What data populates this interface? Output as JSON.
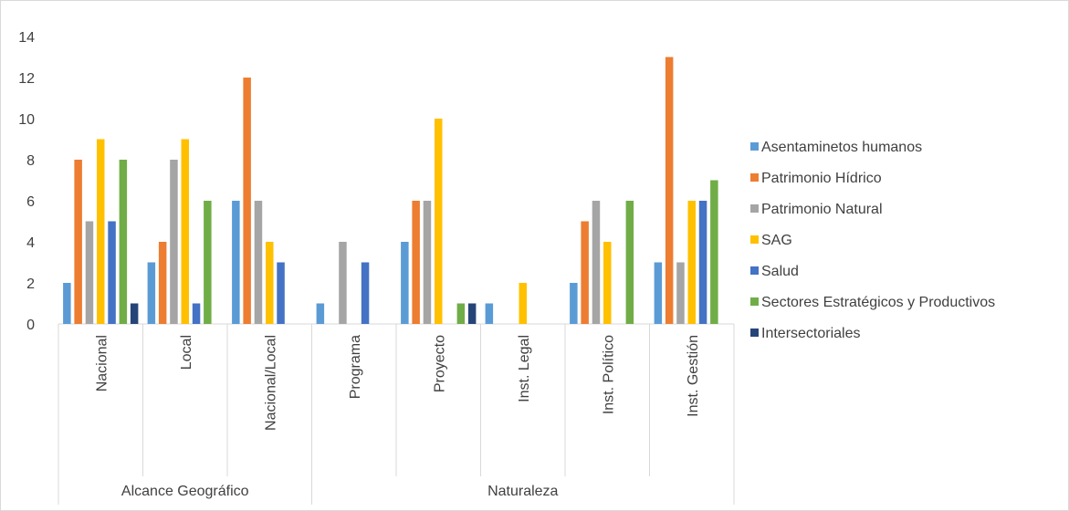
{
  "chart_data": {
    "type": "bar",
    "title": "",
    "xlabel": "",
    "ylabel": "",
    "ylim": [
      0,
      14
    ],
    "yticks": [
      0,
      2,
      4,
      6,
      8,
      10,
      12,
      14
    ],
    "grid": false,
    "legend_position": "right",
    "groups": [
      {
        "label": "Alcance Geográfico",
        "categories": [
          "Nacional",
          "Local",
          "Nacional/Local"
        ]
      },
      {
        "label": "Naturaleza",
        "categories": [
          "Programa",
          "Proyecto",
          "Inst. Legal",
          "Inst. Político",
          "Inst. Gestión"
        ]
      }
    ],
    "categories": [
      "Nacional",
      "Local",
      "Nacional/Local",
      "Programa",
      "Proyecto",
      "Inst. Legal",
      "Inst. Político",
      "Inst. Gestión"
    ],
    "series": [
      {
        "name": "Asentaminetos humanos",
        "color": "#5B9BD5",
        "values": [
          2,
          3,
          6,
          1,
          4,
          1,
          2,
          3
        ]
      },
      {
        "name": "Patrimonio Hídrico",
        "color": "#ED7D31",
        "values": [
          8,
          4,
          12,
          0,
          6,
          0,
          5,
          13
        ]
      },
      {
        "name": "Patrimonio Natural",
        "color": "#A5A5A5",
        "values": [
          5,
          8,
          6,
          4,
          6,
          0,
          6,
          3
        ]
      },
      {
        "name": "SAG",
        "color": "#FFC000",
        "values": [
          9,
          9,
          4,
          0,
          10,
          2,
          4,
          6
        ]
      },
      {
        "name": "Salud",
        "color": "#4472C4",
        "values": [
          5,
          1,
          3,
          3,
          0,
          0,
          0,
          6
        ]
      },
      {
        "name": "Sectores Estratégicos y Productivos",
        "color": "#70AD47",
        "values": [
          8,
          6,
          0,
          0,
          1,
          0,
          6,
          7
        ]
      },
      {
        "name": "Intersectoriales",
        "color": "#264478",
        "values": [
          1,
          0,
          0,
          0,
          1,
          0,
          0,
          0
        ]
      }
    ]
  }
}
